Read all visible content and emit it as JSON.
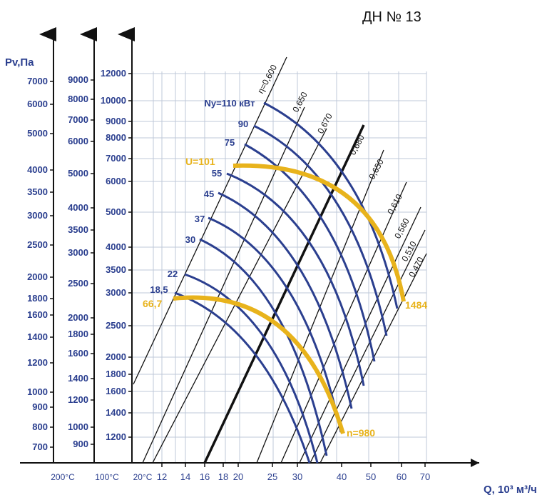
{
  "title": "ДН № 13",
  "chart_data": {
    "type": "line",
    "title": "ДН № 13",
    "ylabel": "Pv,Па",
    "xlabel": "Q, 10³ м³/ч",
    "x_axis": {
      "scale": "log",
      "ticks": [
        "12",
        "14",
        "16",
        "18",
        "20",
        "25",
        "30",
        "40",
        "50",
        "60",
        "70"
      ],
      "temperature_labels": [
        "200°C",
        "100°C",
        "20°C"
      ]
    },
    "y_axes": [
      {
        "name": "200°C",
        "ticks": [
          "700",
          "800",
          "900",
          "1000",
          "1200",
          "1400",
          "1600",
          "1800",
          "2000",
          "2500",
          "3000",
          "3500",
          "4000",
          "5000",
          "6000",
          "7000"
        ]
      },
      {
        "name": "100°C",
        "ticks": [
          "900",
          "1000",
          "1200",
          "1400",
          "1600",
          "1800",
          "2000",
          "2500",
          "3000",
          "3500",
          "4000",
          "5000",
          "6000",
          "7000",
          "8000",
          "9000"
        ]
      },
      {
        "name": "20°C",
        "ticks": [
          "1200",
          "1400",
          "1600",
          "1800",
          "2000",
          "2500",
          "3000",
          "3500",
          "4000",
          "5000",
          "6000",
          "7000",
          "8000",
          "9000",
          "10000",
          "12000"
        ]
      }
    ],
    "efficiency_lines": [
      "η=0,600",
      "0,650",
      "0,670",
      "0,680",
      "0,650",
      "0,610",
      "0,560",
      "0,510",
      "0,470"
    ],
    "power_curves": [
      "Ny=110 кВт",
      "90",
      "75",
      "55",
      "45",
      "37",
      "30",
      "22",
      "18,5"
    ],
    "speed_curves": [
      {
        "name": "n=980",
        "start_label": "66,7",
        "end_label": "n=980"
      },
      {
        "name": "n=1484",
        "start_label": "U=101",
        "end_label": "1484"
      }
    ],
    "colors": {
      "blue": "#2b3f8f",
      "yellow": "#e8b31c",
      "black": "#111111",
      "grid": "#bfc8d8"
    }
  }
}
